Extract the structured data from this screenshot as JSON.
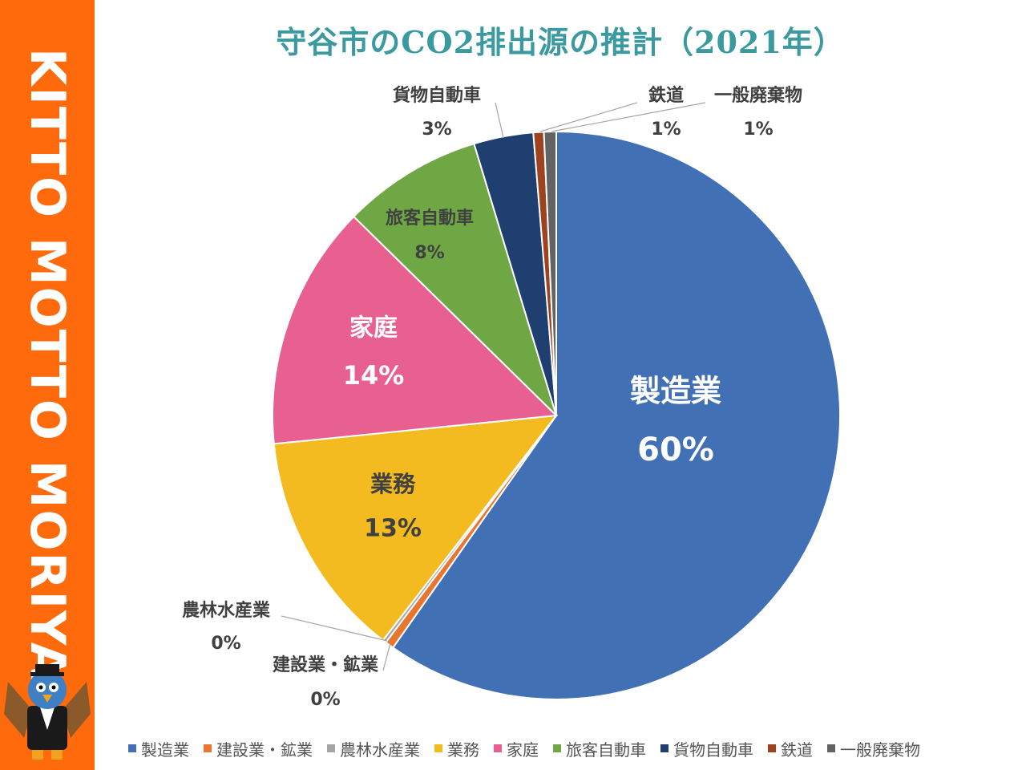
{
  "sidebar": {
    "brand_text": "KITTO MOTTO MORIYA"
  },
  "chart_data": {
    "type": "pie",
    "title": "守谷市のCO2排出源の推計（2021年）",
    "categories": [
      "製造業",
      "建設業・鉱業",
      "農林水産業",
      "業務",
      "家庭",
      "旅客自動車",
      "貨物自動車",
      "鉄道",
      "一般廃棄物"
    ],
    "values": [
      60,
      0.5,
      0.2,
      13,
      14,
      8,
      3.4,
      0.6,
      0.7
    ],
    "percent_labels": [
      "60%",
      "0%",
      "0%",
      "13%",
      "14%",
      "8%",
      "3%",
      "1%",
      "1%"
    ],
    "colors": [
      "#4270b4",
      "#e8762f",
      "#a5a5a5",
      "#f3bb1f",
      "#e8608f",
      "#6ea744",
      "#1f3f70",
      "#9e4320",
      "#636363"
    ],
    "legend_position": "bottom"
  }
}
